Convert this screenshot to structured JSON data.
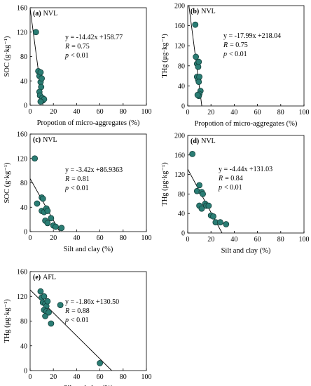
{
  "chart_data": [
    {
      "id": "a",
      "type": "scatter",
      "panel_letter": "(a)",
      "panel_site": "NVL",
      "xlabel": "Propotion of micro-aggregates (%)",
      "ylabel": "SOC (g·kg⁻¹)",
      "xlim": [
        0,
        100
      ],
      "ylim": [
        0,
        160
      ],
      "xticks": [
        0,
        20,
        40,
        60,
        80,
        100
      ],
      "yticks": [
        0,
        40,
        80,
        120,
        160
      ],
      "points": [
        [
          5,
          120
        ],
        [
          7,
          56
        ],
        [
          8,
          48
        ],
        [
          9,
          54
        ],
        [
          9,
          38
        ],
        [
          9.5,
          30
        ],
        [
          10,
          44
        ],
        [
          8,
          22
        ],
        [
          8.5,
          16
        ],
        [
          10.5,
          12
        ],
        [
          11,
          8
        ],
        [
          12,
          10
        ],
        [
          9,
          6
        ]
      ],
      "fit": {
        "slope": -14.42,
        "intercept": 158.77
      },
      "annotation": {
        "equation": "y = -14.42x +158.77",
        "r": "= 0.75",
        "p": "< 0.01"
      }
    },
    {
      "id": "b",
      "type": "scatter",
      "panel_letter": "(b)",
      "panel_site": "NVL",
      "xlabel": "Propotion of micro-aggregates (%)",
      "ylabel": "THg (μg·kg⁻¹)",
      "xlim": [
        0,
        100
      ],
      "ylim": [
        0,
        200
      ],
      "xticks": [
        0,
        20,
        40,
        60,
        80,
        100
      ],
      "yticks": [
        0,
        40,
        80,
        120,
        160,
        200
      ],
      "points": [
        [
          6.5,
          162
        ],
        [
          7,
          98
        ],
        [
          8,
          84
        ],
        [
          9,
          78
        ],
        [
          9.5,
          88
        ],
        [
          8,
          58
        ],
        [
          9,
          52
        ],
        [
          10,
          58
        ],
        [
          9.5,
          48
        ],
        [
          11,
          30
        ],
        [
          10,
          24
        ],
        [
          9.5,
          20
        ],
        [
          8.5,
          22
        ]
      ],
      "fit": {
        "slope": -17.99,
        "intercept": 218.04
      },
      "annotation": {
        "equation": "y = -17.99x +218.04",
        "r": "= 0.75",
        "p": "< 0.01"
      }
    },
    {
      "id": "c",
      "type": "scatter",
      "panel_letter": "(c)",
      "panel_site": "NVL",
      "xlabel": "Silt and clay (%)",
      "ylabel": "SOC (g·kg⁻¹)",
      "xlim": [
        0,
        100
      ],
      "ylim": [
        0,
        160
      ],
      "xticks": [
        0,
        20,
        40,
        60,
        80,
        100
      ],
      "yticks": [
        0,
        40,
        80,
        120,
        160
      ],
      "points": [
        [
          4,
          120
        ],
        [
          6,
          46
        ],
        [
          10,
          56
        ],
        [
          11,
          54
        ],
        [
          10,
          34
        ],
        [
          12,
          32
        ],
        [
          14,
          38
        ],
        [
          15,
          34
        ],
        [
          13,
          18
        ],
        [
          15,
          14
        ],
        [
          18,
          22
        ],
        [
          20,
          10
        ],
        [
          22,
          8
        ],
        [
          27,
          6
        ]
      ],
      "fit": {
        "slope": -3.42,
        "intercept": 86.9363
      },
      "annotation": {
        "equation": "y = -3.42x +86.9363",
        "r": "= 0.81",
        "p": "< 0.01"
      }
    },
    {
      "id": "d",
      "type": "scatter",
      "panel_letter": "(d)",
      "panel_site": "NVL",
      "xlabel": "Silt and clay (%)",
      "ylabel": "THg (μg·kg⁻¹)",
      "xlim": [
        0,
        100
      ],
      "ylim": [
        0,
        200
      ],
      "xticks": [
        0,
        20,
        40,
        60,
        80,
        100
      ],
      "yticks": [
        0,
        40,
        80,
        120,
        160,
        200
      ],
      "points": [
        [
          4,
          162
        ],
        [
          8,
          86
        ],
        [
          10,
          98
        ],
        [
          12,
          84
        ],
        [
          13,
          80
        ],
        [
          10,
          56
        ],
        [
          12,
          50
        ],
        [
          15,
          60
        ],
        [
          16,
          56
        ],
        [
          18,
          56
        ],
        [
          20,
          36
        ],
        [
          22,
          34
        ],
        [
          24,
          22
        ],
        [
          28,
          22
        ],
        [
          33,
          18
        ]
      ],
      "fit": {
        "slope": -4.44,
        "intercept": 131.03
      },
      "annotation": {
        "equation": "y = -4.44x +131.03",
        "r": "= 0.84",
        "p": "< 0.01"
      }
    },
    {
      "id": "e",
      "type": "scatter",
      "panel_letter": "(e)",
      "panel_site": "AFL",
      "xlabel": "Silt and clay (%)",
      "ylabel": "THg (μg·kg⁻¹)",
      "xlim": [
        0,
        100
      ],
      "ylim": [
        0,
        160
      ],
      "xticks": [
        0,
        20,
        40,
        60,
        80,
        100
      ],
      "yticks": [
        0,
        40,
        80,
        120,
        160
      ],
      "points": [
        [
          9,
          128
        ],
        [
          10,
          118
        ],
        [
          12,
          120
        ],
        [
          11,
          110
        ],
        [
          13,
          108
        ],
        [
          14,
          104
        ],
        [
          15,
          112
        ],
        [
          12,
          98
        ],
        [
          14,
          96
        ],
        [
          13,
          88
        ],
        [
          16,
          94
        ],
        [
          26,
          106
        ],
        [
          18,
          76
        ],
        [
          60,
          12
        ]
      ],
      "fit": {
        "slope": -1.86,
        "intercept": 130.5
      },
      "annotation": {
        "equation": "y = -1.86x +130.50",
        "r": "= 0.88",
        "p": "< 0.01"
      }
    }
  ],
  "colors": {
    "marker_fill": "#2a7d74",
    "marker_stroke": "#133f3a",
    "line": "#000000"
  },
  "labels": {
    "r_symbol": "R",
    "p_symbol": "p"
  }
}
